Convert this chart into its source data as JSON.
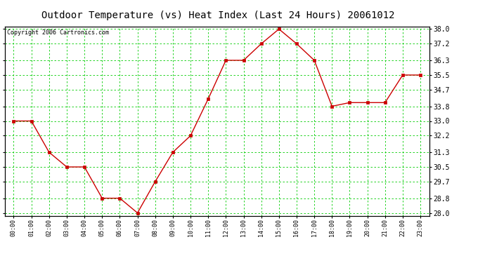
{
  "title": "Outdoor Temperature (vs) Heat Index (Last 24 Hours) 20061012",
  "copyright": "Copyright 2006 Cartronics.com",
  "x_labels": [
    "00:00",
    "01:00",
    "02:00",
    "03:00",
    "04:00",
    "05:00",
    "06:00",
    "07:00",
    "08:00",
    "09:00",
    "10:00",
    "11:00",
    "12:00",
    "13:00",
    "14:00",
    "15:00",
    "16:00",
    "17:00",
    "18:00",
    "19:00",
    "20:00",
    "21:00",
    "22:00",
    "23:00"
  ],
  "y_values": [
    33.0,
    33.0,
    31.3,
    30.5,
    30.5,
    28.8,
    28.8,
    28.0,
    29.7,
    31.3,
    32.2,
    34.2,
    36.3,
    36.3,
    37.2,
    38.0,
    37.2,
    36.3,
    33.8,
    34.0,
    34.0,
    34.0,
    35.5,
    35.5
  ],
  "y_ticks": [
    28.0,
    28.8,
    29.7,
    30.5,
    31.3,
    32.2,
    33.0,
    33.8,
    34.7,
    35.5,
    36.3,
    37.2,
    38.0
  ],
  "y_tick_labels": [
    "28.0",
    "28.8",
    "29.7",
    "30.5",
    "31.3",
    "32.2",
    "33.0",
    "33.8",
    "34.7",
    "35.5",
    "36.3",
    "37.2",
    "38.0"
  ],
  "y_min": 27.85,
  "y_max": 38.15,
  "line_color": "#cc0000",
  "marker_color": "#cc0000",
  "bg_color": "#ffffff",
  "plot_bg_color": "#ffffff",
  "grid_color": "#00cc00",
  "title_fontsize": 10,
  "copyright_fontsize": 6,
  "tick_fontsize": 7,
  "x_tick_fontsize": 6
}
